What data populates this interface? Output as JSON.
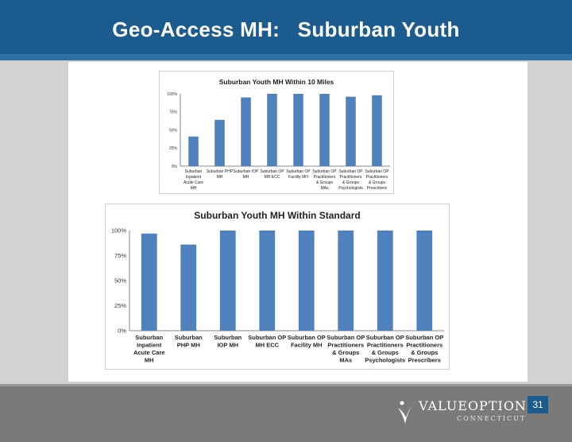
{
  "slide": {
    "title": "Geo-Access MH:   Suburban Youth",
    "page_number": "31",
    "logo": {
      "name": "VALUEOPTIONS®",
      "sub": "CONNECTICUT"
    }
  },
  "colors": {
    "header": "#1c5b8e",
    "bar": "#4f81bd",
    "footer": "#7a7a7a"
  },
  "chart_data": [
    {
      "type": "bar",
      "title": "Suburban Youth MH Within 10 Miles",
      "categories": [
        [
          "Suburban",
          "Inpatient",
          "Acute Care",
          "MH"
        ],
        [
          "Suburban PHP",
          "MH"
        ],
        [
          "Suburban IOP",
          "MH"
        ],
        [
          "Suburban OP",
          "MH ECC"
        ],
        [
          "Suburban OP",
          "Facility MH"
        ],
        [
          "Suburban OP",
          "Practitioners",
          "& Groups",
          "MAs"
        ],
        [
          "Suburban OP",
          "Practitioners",
          "& Groups",
          "Psychologists"
        ],
        [
          "Suburban OP",
          "Practitioners",
          "& Groups",
          "Prescribers"
        ]
      ],
      "values": [
        0.41,
        0.64,
        0.95,
        1.0,
        1.0,
        1.0,
        0.96,
        0.98
      ],
      "yticks": [
        "0%",
        "25%",
        "50%",
        "75%",
        "100%"
      ],
      "ylim": [
        0,
        1
      ],
      "grid": false,
      "legend": "none"
    },
    {
      "type": "bar",
      "title": "Suburban Youth MH Within Standard",
      "categories": [
        [
          "Suburban",
          "Inpatient",
          "Acute Care",
          "MH"
        ],
        [
          "Suburban",
          "PHP MH"
        ],
        [
          "Suburban",
          "IOP MH"
        ],
        [
          "Suburban OP",
          "MH ECC"
        ],
        [
          "Suburban OP",
          "Facility MH"
        ],
        [
          "Suburban OP",
          "Practitioners",
          "& Groups",
          "MAs"
        ],
        [
          "Suburban OP",
          "Practitioners",
          "& Groups",
          "Psychologists"
        ],
        [
          "Suburban OP",
          "Practitioners",
          "& Groups",
          "Prescribers"
        ]
      ],
      "values": [
        0.97,
        0.86,
        1.0,
        1.0,
        1.0,
        1.0,
        1.0,
        1.0
      ],
      "yticks": [
        "0%",
        "25%",
        "50%",
        "75%",
        "100%"
      ],
      "ylim": [
        0,
        1
      ],
      "grid": false,
      "legend": "none"
    }
  ]
}
